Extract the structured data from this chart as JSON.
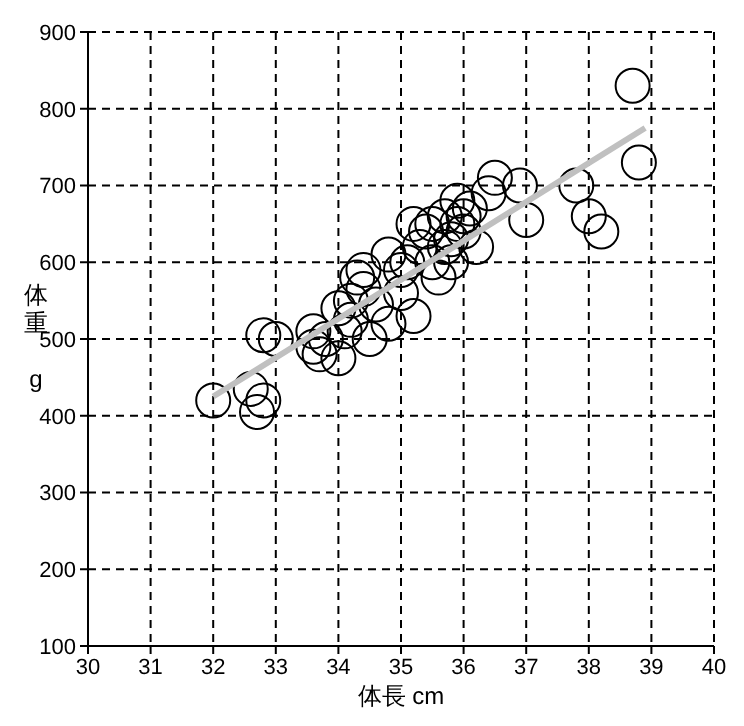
{
  "chart_data": {
    "type": "scatter",
    "xlabel": "体長 cm",
    "ylabel": "体重 g",
    "xlim": [
      30,
      40
    ],
    "xticks": [
      30,
      31,
      32,
      33,
      34,
      35,
      36,
      37,
      38,
      39,
      40
    ],
    "ylim": [
      100,
      900
    ],
    "yticks": [
      100,
      200,
      300,
      400,
      500,
      600,
      700,
      800,
      900
    ],
    "grid": true,
    "series": [
      {
        "type": "scatter",
        "marker": "circle",
        "color": "#000000",
        "x": [
          32.0,
          32.6,
          32.7,
          32.8,
          32.8,
          33.0,
          33.6,
          33.6,
          33.7,
          33.8,
          34.0,
          34.0,
          34.1,
          34.2,
          34.2,
          34.3,
          34.4,
          34.4,
          34.5,
          34.6,
          34.8,
          34.8,
          35.0,
          35.1,
          35.2,
          35.2,
          35.3,
          35.4,
          35.5,
          35.5,
          35.6,
          35.7,
          35.7,
          35.8,
          35.8,
          35.9,
          35.9,
          36.0,
          36.0,
          36.1,
          36.2,
          36.5,
          36.9,
          37.0,
          37.8,
          38.0,
          38.2,
          38.7,
          38.8,
          36.4,
          35.0
        ],
        "values": [
          420,
          435,
          405,
          420,
          505,
          500,
          510,
          490,
          480,
          500,
          540,
          475,
          510,
          525,
          550,
          580,
          590,
          565,
          500,
          545,
          610,
          520,
          560,
          600,
          650,
          530,
          620,
          640,
          650,
          600,
          580,
          620,
          660,
          630,
          600,
          680,
          650,
          660,
          640,
          670,
          620,
          710,
          700,
          655,
          700,
          660,
          640,
          830,
          730,
          690,
          590
        ]
      },
      {
        "type": "line",
        "marker": "none",
        "color": "#c0c0c0",
        "x": [
          32.0,
          38.9
        ],
        "values": [
          425,
          775
        ]
      }
    ]
  }
}
